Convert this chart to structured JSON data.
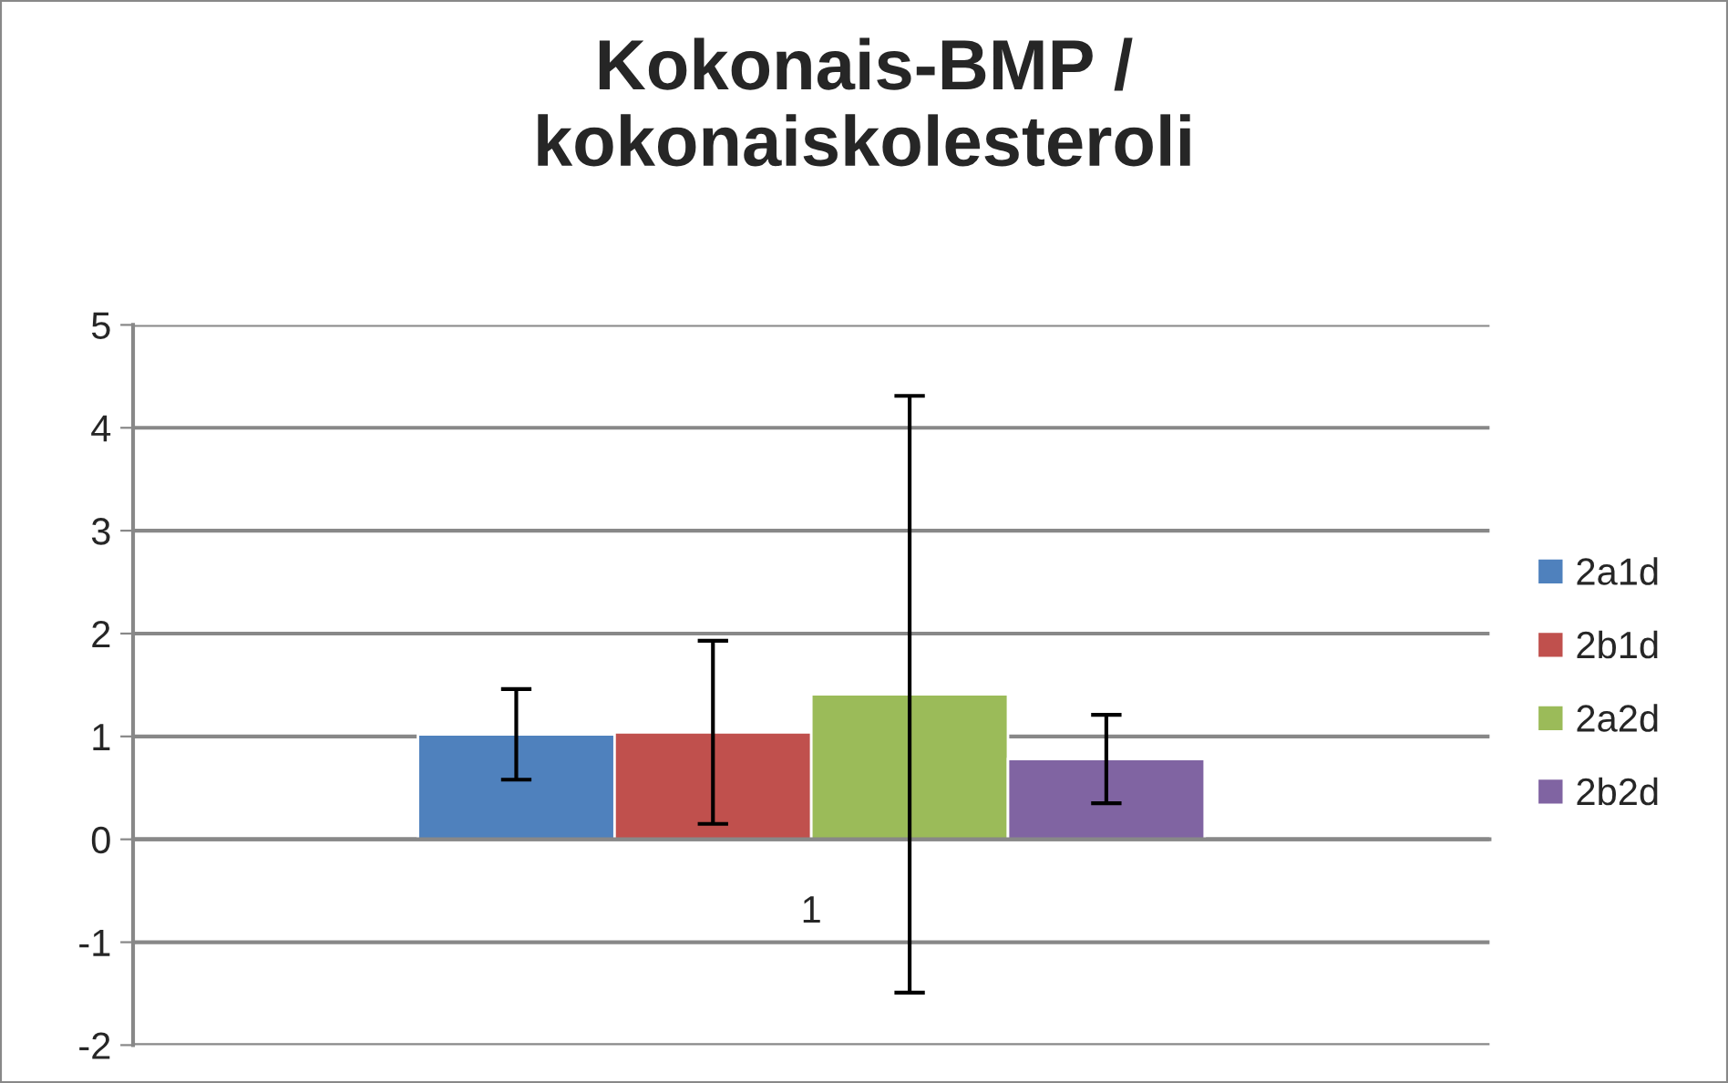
{
  "chart_data": {
    "type": "bar",
    "title": "Kokonais-BMP /\nkokonaiskolesteroli",
    "categories": [
      "1"
    ],
    "series": [
      {
        "name": "2a1d",
        "color": "#4f81bd",
        "values": [
          1.02
        ],
        "errors": [
          0.44
        ]
      },
      {
        "name": "2b1d",
        "color": "#c0504d",
        "values": [
          1.04
        ],
        "errors": [
          0.89
        ]
      },
      {
        "name": "2a2d",
        "color": "#9bbb59",
        "values": [
          1.41
        ],
        "errors": [
          2.9
        ]
      },
      {
        "name": "2b2d",
        "color": "#8064a2",
        "values": [
          0.78
        ],
        "errors": [
          0.43
        ]
      }
    ],
    "ylim": [
      -2,
      5
    ],
    "yticks": [
      -2,
      -1,
      0,
      1,
      2,
      3,
      4,
      5
    ],
    "grid": "y",
    "legend": "right"
  }
}
